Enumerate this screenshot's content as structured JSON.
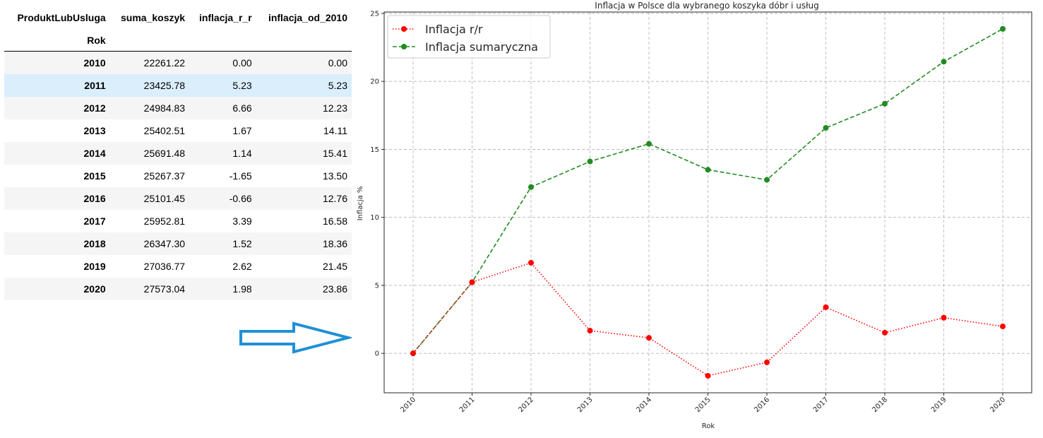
{
  "table": {
    "columns_label": "ProduktLubUsluga",
    "index_name": "Rok",
    "columns": [
      "suma_koszyk",
      "inflacja_r_r",
      "inflacja_od_2010"
    ],
    "rows": [
      {
        "year": "2010",
        "suma_koszyk": "22261.22",
        "inflacja_r_r": "0.00",
        "inflacja_od_2010": "0.00"
      },
      {
        "year": "2011",
        "suma_koszyk": "23425.78",
        "inflacja_r_r": "5.23",
        "inflacja_od_2010": "5.23"
      },
      {
        "year": "2012",
        "suma_koszyk": "24984.83",
        "inflacja_r_r": "6.66",
        "inflacja_od_2010": "12.23"
      },
      {
        "year": "2013",
        "suma_koszyk": "25402.51",
        "inflacja_r_r": "1.67",
        "inflacja_od_2010": "14.11"
      },
      {
        "year": "2014",
        "suma_koszyk": "25691.48",
        "inflacja_r_r": "1.14",
        "inflacja_od_2010": "15.41"
      },
      {
        "year": "2015",
        "suma_koszyk": "25267.37",
        "inflacja_r_r": "-1.65",
        "inflacja_od_2010": "13.50"
      },
      {
        "year": "2016",
        "suma_koszyk": "25101.45",
        "inflacja_r_r": "-0.66",
        "inflacja_od_2010": "12.76"
      },
      {
        "year": "2017",
        "suma_koszyk": "25952.81",
        "inflacja_r_r": "3.39",
        "inflacja_od_2010": "16.58"
      },
      {
        "year": "2018",
        "suma_koszyk": "26347.30",
        "inflacja_r_r": "1.52",
        "inflacja_od_2010": "18.36"
      },
      {
        "year": "2019",
        "suma_koszyk": "27036.77",
        "inflacja_r_r": "2.62",
        "inflacja_od_2010": "21.45"
      },
      {
        "year": "2020",
        "suma_koszyk": "27573.04",
        "inflacja_r_r": "1.98",
        "inflacja_od_2010": "23.86"
      }
    ]
  },
  "colors": {
    "arrow": "#1e90d6",
    "series_yoy": "#ff0000",
    "series_cumulative": "#228b22",
    "grid": "#b0b0b0"
  },
  "chart_data": {
    "type": "line",
    "title": "Inflacja w Polsce dla wybranego koszyka dóbr i usług",
    "xlabel": "Rok",
    "ylabel": "Inflacja %",
    "x": [
      "2010",
      "2011",
      "2012",
      "2013",
      "2014",
      "2015",
      "2016",
      "2017",
      "2018",
      "2019",
      "2020"
    ],
    "yticks": [
      0,
      5,
      10,
      15,
      20,
      25
    ],
    "ylim": [
      -2.9,
      25.1
    ],
    "grid": true,
    "legend_position": "top-left",
    "series": [
      {
        "name": "Inflacja r/r",
        "style": "dotted",
        "marker": "circle",
        "values": [
          0.0,
          5.23,
          6.66,
          1.67,
          1.14,
          -1.65,
          -0.66,
          3.39,
          1.52,
          2.62,
          1.98
        ]
      },
      {
        "name": "Inflacja sumaryczna",
        "style": "dashed",
        "marker": "circle",
        "values": [
          0.0,
          5.23,
          12.23,
          14.11,
          15.41,
          13.5,
          12.76,
          16.58,
          18.36,
          21.45,
          23.86
        ]
      }
    ]
  }
}
